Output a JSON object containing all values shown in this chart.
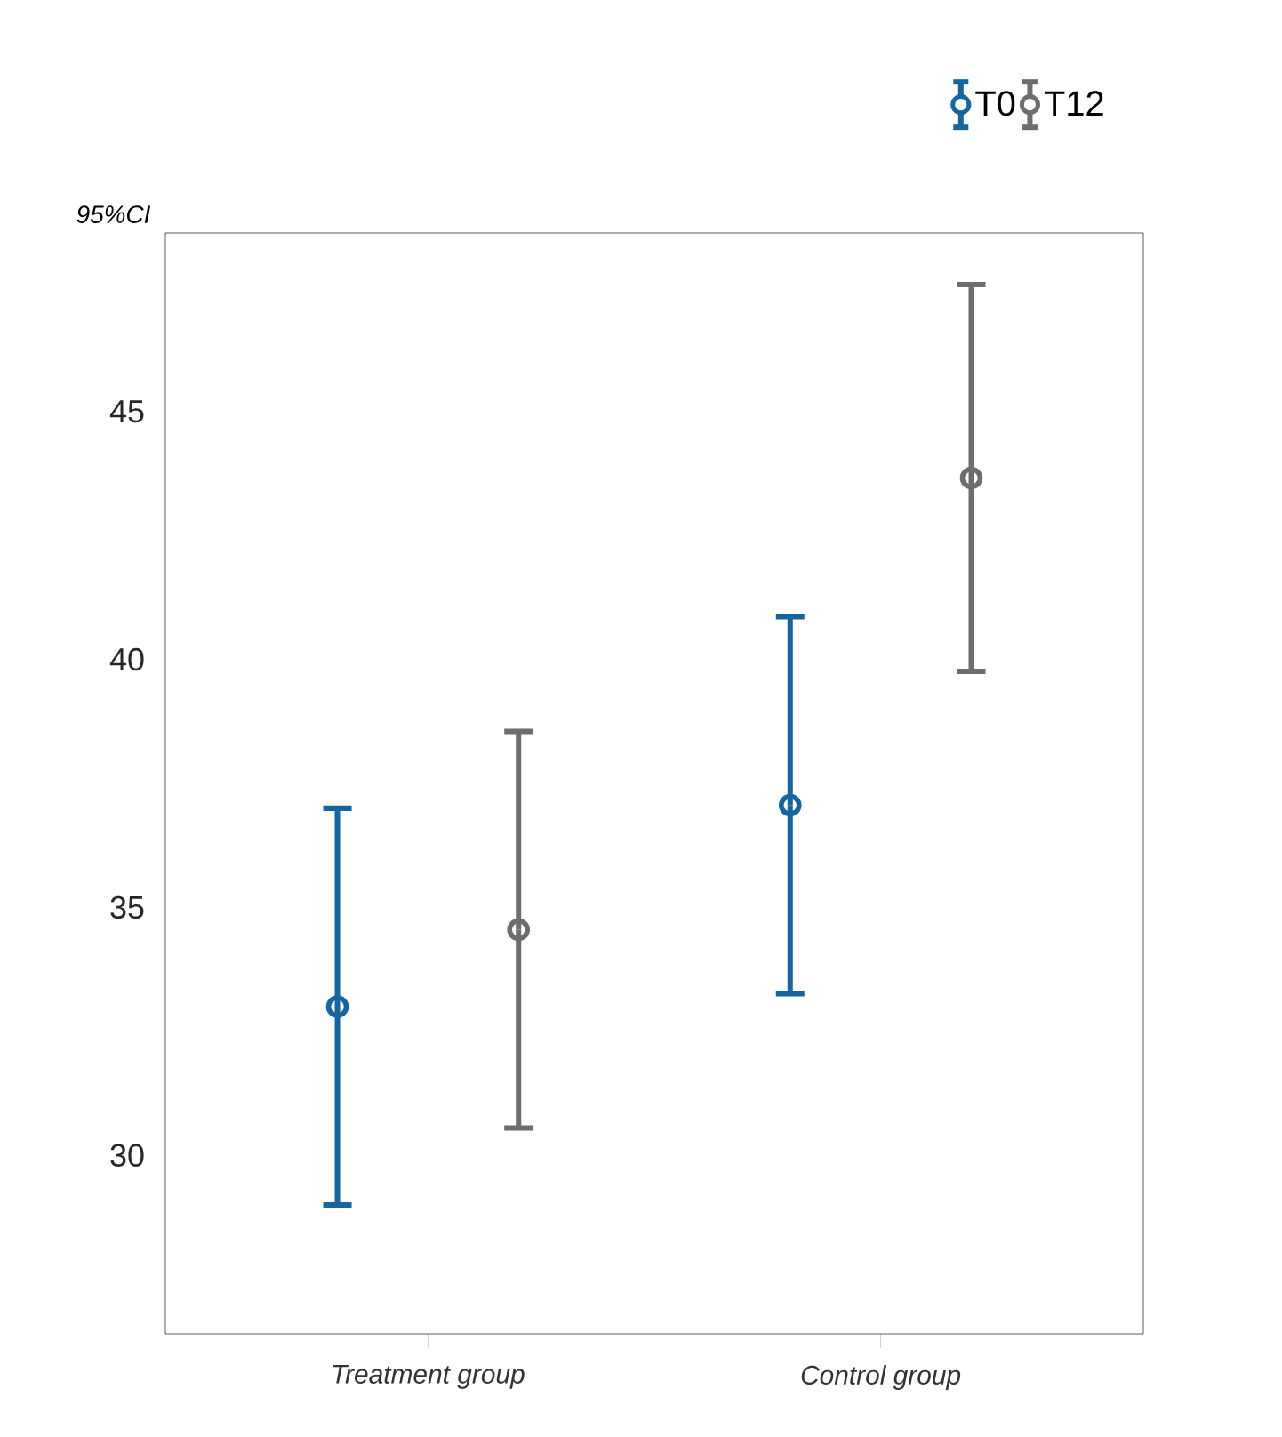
{
  "chart_data": {
    "type": "scatter",
    "ylabel": "95%CI",
    "categories": [
      "Treatment group",
      "Control group"
    ],
    "series": [
      {
        "name": "T0",
        "color": "#1565a0",
        "values": [
          33.0,
          37.06
        ],
        "errors": [
          4.0,
          3.8
        ]
      },
      {
        "name": "T12",
        "color": "#6d6d6d",
        "values": [
          34.55,
          43.66
        ],
        "errors": [
          4.0,
          3.9
        ]
      }
    ],
    "ylim": [
      26.4,
      48.6
    ],
    "yticks": [
      30,
      35,
      40,
      45
    ],
    "grid": false,
    "legend": "top right",
    "marker": "circle"
  }
}
